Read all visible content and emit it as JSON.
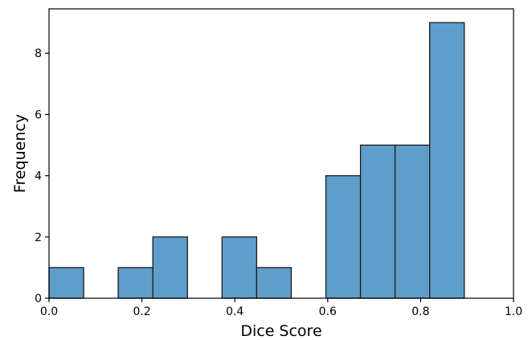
{
  "chart_data": {
    "type": "bar",
    "title": "",
    "xlabel": "Dice Score",
    "ylabel": "Frequency",
    "xlim": [
      0.0,
      1.0
    ],
    "ylim": [
      0,
      9.45
    ],
    "xticks": [
      0.0,
      0.2,
      0.4,
      0.6,
      0.8,
      1.0
    ],
    "xtick_labels": [
      "0.0",
      "0.2",
      "0.4",
      "0.6",
      "0.8",
      "1.0"
    ],
    "yticks": [
      0,
      2,
      4,
      6,
      8
    ],
    "ytick_labels": [
      "0",
      "2",
      "4",
      "6",
      "8"
    ],
    "grid": false,
    "bars": [
      {
        "x_start": 0.0,
        "x_end": 0.0745,
        "value": 1
      },
      {
        "x_start": 0.0745,
        "x_end": 0.149,
        "value": 0
      },
      {
        "x_start": 0.149,
        "x_end": 0.2235,
        "value": 1
      },
      {
        "x_start": 0.2235,
        "x_end": 0.298,
        "value": 2
      },
      {
        "x_start": 0.298,
        "x_end": 0.3725,
        "value": 0
      },
      {
        "x_start": 0.3725,
        "x_end": 0.447,
        "value": 2
      },
      {
        "x_start": 0.447,
        "x_end": 0.5215,
        "value": 1
      },
      {
        "x_start": 0.5215,
        "x_end": 0.596,
        "value": 0
      },
      {
        "x_start": 0.596,
        "x_end": 0.6705,
        "value": 4
      },
      {
        "x_start": 0.6705,
        "x_end": 0.745,
        "value": 5
      },
      {
        "x_start": 0.745,
        "x_end": 0.8195,
        "value": 5
      },
      {
        "x_start": 0.8195,
        "x_end": 0.894,
        "value": 9
      }
    ],
    "colors": {
      "bar_fill": "#5f9ecb",
      "bar_edge": "#1a1a1a",
      "axis": "#000000"
    }
  }
}
